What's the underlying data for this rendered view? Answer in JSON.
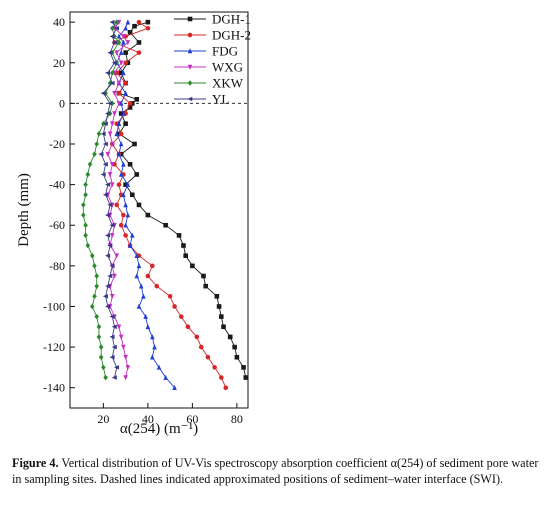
{
  "chart_data": {
    "type": "line",
    "xlabel": "α(254) (m⁻¹)",
    "ylabel": "Depth (mm)",
    "xlim": [
      5,
      85
    ],
    "ylim": [
      -150,
      45
    ],
    "xticks": [
      20,
      40,
      60,
      80
    ],
    "yticks": [
      40,
      20,
      0,
      -20,
      -40,
      -60,
      -80,
      -100,
      -120,
      -140
    ],
    "x_tick_labels": [
      "20",
      "40",
      "60",
      "80"
    ],
    "y_tick_labels": [
      "40",
      "20",
      "0",
      "-20",
      "-40",
      "-60",
      "-80",
      "-100",
      "-120",
      "-140"
    ],
    "reference_line": {
      "y": 0,
      "style": "dashed"
    },
    "legend_position": "top-right",
    "series": [
      {
        "name": "DGH-1",
        "color": "#1a1a1a",
        "marker": "square",
        "points": [
          [
            40,
            40
          ],
          [
            34,
            38
          ],
          [
            32,
            35
          ],
          [
            36,
            30
          ],
          [
            30,
            25
          ],
          [
            31,
            20
          ],
          [
            28,
            15
          ],
          [
            30,
            10
          ],
          [
            27,
            5
          ],
          [
            35,
            2
          ],
          [
            33,
            0
          ],
          [
            32,
            -2
          ],
          [
            28,
            -5
          ],
          [
            30,
            -10
          ],
          [
            27,
            -15
          ],
          [
            34,
            -20
          ],
          [
            28,
            -25
          ],
          [
            32,
            -30
          ],
          [
            35,
            -35
          ],
          [
            30,
            -40
          ],
          [
            33,
            -45
          ],
          [
            36,
            -50
          ],
          [
            40,
            -55
          ],
          [
            48,
            -60
          ],
          [
            54,
            -65
          ],
          [
            56,
            -70
          ],
          [
            57,
            -75
          ],
          [
            60,
            -80
          ],
          [
            65,
            -85
          ],
          [
            66,
            -90
          ],
          [
            71,
            -95
          ],
          [
            72,
            -100
          ],
          [
            73,
            -105
          ],
          [
            74,
            -110
          ],
          [
            77,
            -115
          ],
          [
            79,
            -120
          ],
          [
            80,
            -125
          ],
          [
            83,
            -130
          ],
          [
            84,
            -135
          ]
        ]
      },
      {
        "name": "DGH-2",
        "color": "#d62728",
        "marker": "circle",
        "points": [
          [
            36,
            40
          ],
          [
            40,
            37
          ],
          [
            30,
            33
          ],
          [
            25,
            30
          ],
          [
            36,
            25
          ],
          [
            30,
            20
          ],
          [
            26,
            15
          ],
          [
            30,
            10
          ],
          [
            27,
            5
          ],
          [
            32,
            0
          ],
          [
            30,
            -5
          ],
          [
            26,
            -10
          ],
          [
            28,
            -15
          ],
          [
            24,
            -20
          ],
          [
            27,
            -25
          ],
          [
            25,
            -30
          ],
          [
            29,
            -35
          ],
          [
            27,
            -40
          ],
          [
            28,
            -45
          ],
          [
            26,
            -50
          ],
          [
            29,
            -55
          ],
          [
            28,
            -60
          ],
          [
            30,
            -65
          ],
          [
            32,
            -70
          ],
          [
            36,
            -75
          ],
          [
            42,
            -80
          ],
          [
            40,
            -85
          ],
          [
            44,
            -90
          ],
          [
            50,
            -95
          ],
          [
            52,
            -100
          ],
          [
            55,
            -105
          ],
          [
            58,
            -110
          ],
          [
            62,
            -115
          ],
          [
            64,
            -120
          ],
          [
            67,
            -125
          ],
          [
            70,
            -130
          ],
          [
            73,
            -135
          ],
          [
            75,
            -140
          ]
        ]
      },
      {
        "name": "FDG",
        "color": "#1f3fd0",
        "marker": "triangle-up",
        "points": [
          [
            31,
            40
          ],
          [
            30,
            37
          ],
          [
            27,
            33
          ],
          [
            29,
            30
          ],
          [
            28,
            25
          ],
          [
            26,
            20
          ],
          [
            29,
            15
          ],
          [
            27,
            10
          ],
          [
            30,
            5
          ],
          [
            28,
            0
          ],
          [
            29,
            -5
          ],
          [
            27,
            -10
          ],
          [
            26,
            -15
          ],
          [
            28,
            -20
          ],
          [
            27,
            -25
          ],
          [
            29,
            -30
          ],
          [
            28,
            -35
          ],
          [
            31,
            -40
          ],
          [
            29,
            -45
          ],
          [
            30,
            -50
          ],
          [
            31,
            -55
          ],
          [
            30,
            -60
          ],
          [
            33,
            -65
          ],
          [
            32,
            -70
          ],
          [
            35,
            -75
          ],
          [
            36,
            -80
          ],
          [
            35,
            -85
          ],
          [
            37,
            -90
          ],
          [
            38,
            -95
          ],
          [
            36,
            -100
          ],
          [
            39,
            -105
          ],
          [
            40,
            -110
          ],
          [
            42,
            -115
          ],
          [
            43,
            -120
          ],
          [
            42,
            -125
          ],
          [
            45,
            -130
          ],
          [
            48,
            -135
          ],
          [
            52,
            -140
          ]
        ]
      },
      {
        "name": "WXG",
        "color": "#c42fc4",
        "marker": "triangle-down",
        "points": [
          [
            27,
            40
          ],
          [
            25,
            37
          ],
          [
            29,
            33
          ],
          [
            31,
            30
          ],
          [
            26,
            25
          ],
          [
            28,
            20
          ],
          [
            25,
            15
          ],
          [
            27,
            10
          ],
          [
            25,
            5
          ],
          [
            27,
            0
          ],
          [
            25,
            -5
          ],
          [
            24,
            -10
          ],
          [
            23,
            -15
          ],
          [
            24,
            -20
          ],
          [
            22,
            -25
          ],
          [
            24,
            -30
          ],
          [
            23,
            -35
          ],
          [
            24,
            -40
          ],
          [
            22,
            -45
          ],
          [
            24,
            -50
          ],
          [
            23,
            -55
          ],
          [
            25,
            -60
          ],
          [
            24,
            -65
          ],
          [
            23,
            -70
          ],
          [
            26,
            -75
          ],
          [
            24,
            -80
          ],
          [
            25,
            -85
          ],
          [
            23,
            -90
          ],
          [
            24,
            -95
          ],
          [
            23,
            -100
          ],
          [
            25,
            -105
          ],
          [
            27,
            -110
          ],
          [
            28,
            -115
          ],
          [
            29,
            -120
          ],
          [
            30,
            -125
          ],
          [
            31,
            -130
          ],
          [
            30,
            -135
          ]
        ]
      },
      {
        "name": "XKW",
        "color": "#2c8a2c",
        "marker": "diamond",
        "points": [
          [
            26,
            40
          ],
          [
            24,
            37
          ],
          [
            25,
            33
          ],
          [
            27,
            30
          ],
          [
            24,
            25
          ],
          [
            26,
            20
          ],
          [
            24,
            15
          ],
          [
            23,
            10
          ],
          [
            21,
            5
          ],
          [
            24,
            0
          ],
          [
            23,
            -5
          ],
          [
            20,
            -10
          ],
          [
            18,
            -15
          ],
          [
            17,
            -20
          ],
          [
            16,
            -25
          ],
          [
            14,
            -30
          ],
          [
            13,
            -35
          ],
          [
            12,
            -40
          ],
          [
            12,
            -45
          ],
          [
            11,
            -50
          ],
          [
            11,
            -55
          ],
          [
            12,
            -60
          ],
          [
            12,
            -65
          ],
          [
            13,
            -70
          ],
          [
            15,
            -75
          ],
          [
            16,
            -80
          ],
          [
            17,
            -85
          ],
          [
            17,
            -90
          ],
          [
            16,
            -95
          ],
          [
            15,
            -100
          ],
          [
            17,
            -105
          ],
          [
            18,
            -110
          ],
          [
            18,
            -115
          ],
          [
            19,
            -120
          ],
          [
            19,
            -125
          ],
          [
            20,
            -130
          ],
          [
            21,
            -135
          ]
        ]
      },
      {
        "name": "YL",
        "color": "#3a3a8c",
        "marker": "triangle-left",
        "points": [
          [
            24,
            40
          ],
          [
            26,
            37
          ],
          [
            24,
            33
          ],
          [
            25,
            30
          ],
          [
            23,
            25
          ],
          [
            25,
            20
          ],
          [
            22,
            15
          ],
          [
            24,
            10
          ],
          [
            20,
            5
          ],
          [
            23,
            0
          ],
          [
            22,
            -5
          ],
          [
            21,
            -10
          ],
          [
            20,
            -15
          ],
          [
            21,
            -20
          ],
          [
            19,
            -25
          ],
          [
            21,
            -30
          ],
          [
            20,
            -35
          ],
          [
            22,
            -40
          ],
          [
            21,
            -45
          ],
          [
            23,
            -50
          ],
          [
            22,
            -55
          ],
          [
            24,
            -60
          ],
          [
            22,
            -65
          ],
          [
            23,
            -70
          ],
          [
            22,
            -75
          ],
          [
            24,
            -80
          ],
          [
            23,
            -85
          ],
          [
            22,
            -90
          ],
          [
            21,
            -95
          ],
          [
            22,
            -100
          ],
          [
            24,
            -105
          ],
          [
            25,
            -110
          ],
          [
            24,
            -115
          ],
          [
            25,
            -120
          ],
          [
            24,
            -125
          ],
          [
            26,
            -130
          ],
          [
            25,
            -135
          ]
        ]
      }
    ]
  },
  "caption": {
    "label": "Figure 4.",
    "text": "Vertical distribution of UV-Vis spectroscopy absorption coefficient α(254) of sediment pore water in sampling sites. Dashed lines indicated approximated positions of sediment–water interface (SWI)."
  }
}
